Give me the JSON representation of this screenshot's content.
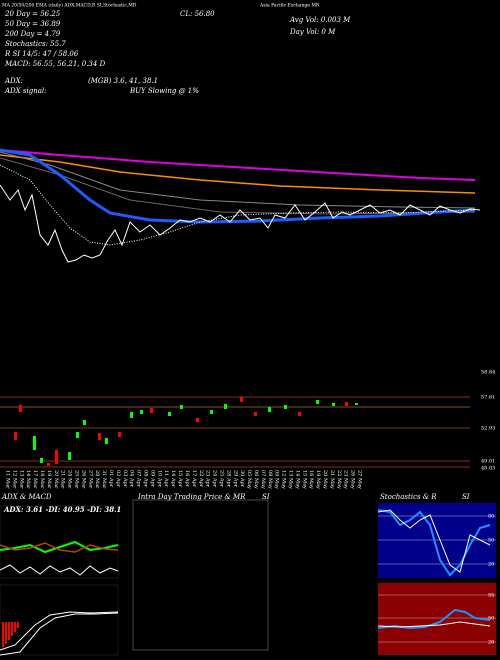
{
  "header": {
    "left_caption": "MA 20/50/200 EMA (daily) ADX,MACD,R SI,Stochastic,MR",
    "lines": [
      "20 Day = 56.25",
      "50 Day = 36.89",
      "200 Day = 4.79",
      "Stochastics: 55.7",
      "R SI 14/5: 47 / 58.06",
      "MACD: 56.55, 56.21, 0.34 D"
    ],
    "close": "CL: 56.80",
    "company": "Asia Pacific Exchange MR",
    "avg_vol": "Avg Vol: 0.003 M",
    "day_vol": "Day Vol: 0 M",
    "adx_label": "ADX:",
    "adx_value": "(MGB) 3.6, 41, 38.1",
    "adx_signal_label": "ADX signal:",
    "adx_signal": "BUY Slowing @ 1%"
  },
  "price_axis": [
    "58.64",
    "57.61",
    "52.93",
    "49.01",
    "48.03"
  ],
  "dates": [
    "11 Mar",
    "12 Mar",
    "13 Mar",
    "14 Mar",
    "17 Mar",
    "18 Mar",
    "19 Mar",
    "20 Mar",
    "21 Mar",
    "24 Mar",
    "25 Mar",
    "26 Mar",
    "27 Mar",
    "28 Mar",
    "31 Mar",
    "01 Apr",
    "02 Apr",
    "03 Apr",
    "04 Apr",
    "07 Apr",
    "08 Apr",
    "09 Apr",
    "10 Apr",
    "11 Apr",
    "14 Apr",
    "15 Apr",
    "16 Apr",
    "17 Apr",
    "22 Apr",
    "23 Apr",
    "24 Apr",
    "25 Apr",
    "28 Apr",
    "29 Apr",
    "30 Apr",
    "05 May",
    "06 May",
    "07 May",
    "08 May",
    "09 May",
    "12 May",
    "13 May",
    "14 May",
    "15 May",
    "16 May",
    "19 May",
    "20 May",
    "21 May",
    "22 May",
    "23 May",
    "26 May",
    "27 May"
  ],
  "panels": {
    "adx_title": "ADX & MACD",
    "adx_readout": "ADX: 3.61 -DI: 40.95 -DI: 38.1",
    "intraday_title": "Intra Day Trading Price & MR",
    "intraday_si": "SI",
    "stoch_title": "Stochastics & R",
    "stoch_si": "SI",
    "stoch_levels": [
      "80",
      "50",
      "20"
    ],
    "rsi_levels": [
      "55",
      "50",
      "20"
    ]
  }
}
